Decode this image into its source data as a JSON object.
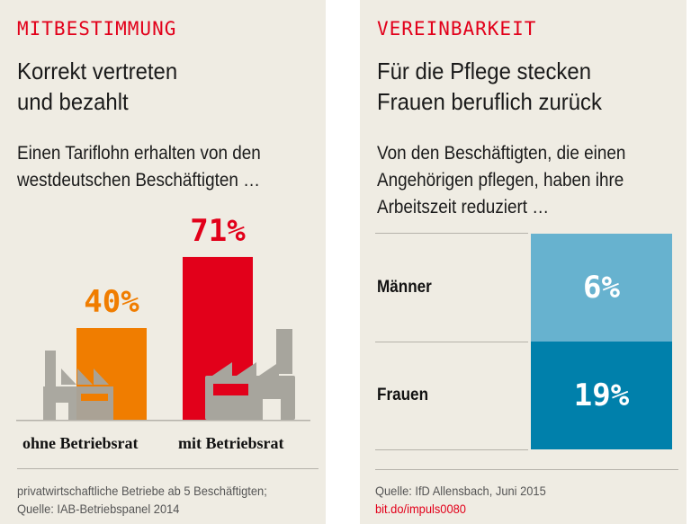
{
  "left": {
    "kicker": "MITBESTIMMUNG",
    "title": [
      "Korrekt vertreten",
      "und bezahlt"
    ],
    "subtitle": [
      "Einen Tariflohn erhalten von den",
      "westdeutschen Beschäftigten …"
    ],
    "footnote": [
      "privatwirtschaftliche Betriebe ab 5 Beschäftigten;",
      "Quelle: IAB-Betriebspanel 2014"
    ]
  },
  "right": {
    "kicker": "VEREINBARKEIT",
    "title": [
      "Für die Pflege stecken",
      "Frauen beruflich zurück"
    ],
    "subtitle": [
      "Von den Beschäftigten, die einen",
      "Angehörigen pflegen, haben ihre",
      "Arbeitszeit reduziert …"
    ],
    "source": "Quelle: IfD Allensbach, Juni 2015",
    "link": "bit.do/impuls0080"
  },
  "chart_data": [
    {
      "type": "bar",
      "categories": [
        "ohne Betriebsrat",
        "mit Betriebsrat"
      ],
      "values": [
        40,
        71
      ],
      "data_labels": [
        "40%",
        "71%"
      ],
      "colors": [
        "#f07d00",
        "#e2001a"
      ],
      "ylim": [
        0,
        100
      ]
    },
    {
      "type": "table",
      "rows": [
        "Männer",
        "Frauen"
      ],
      "values": [
        6,
        19
      ],
      "data_labels": [
        "6%",
        "19%"
      ],
      "colors": [
        "#67b2cf",
        "#0080ab"
      ]
    }
  ]
}
